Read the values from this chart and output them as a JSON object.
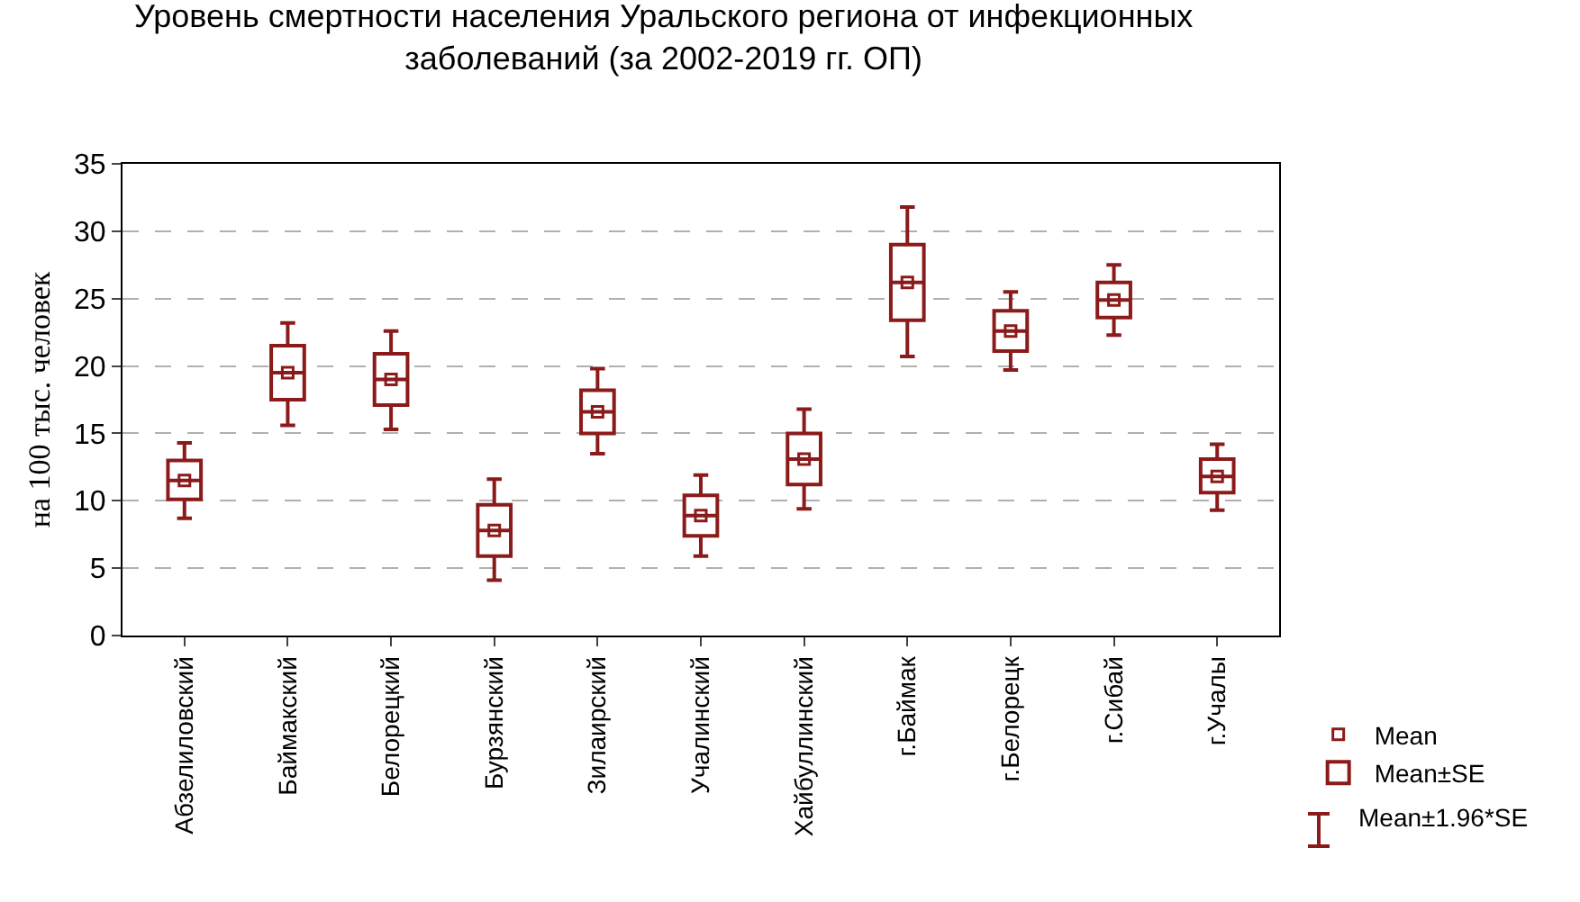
{
  "chart_data": {
    "type": "box",
    "title": "Уровень смертности населения Уральского региона от инфекционных\nзаболеваний (за 2002-2019 гг. ОП)",
    "ylabel": "на 100 тыс. человек",
    "categories": [
      "Абзелиловский",
      "Баймакский",
      "Белорецкий",
      "Бурзянский",
      "Зилаирский",
      "Учалинский",
      "Хайбуллинский",
      "г.Баймак",
      "г.Белорецк",
      "г.Сибай",
      "г.Учалы"
    ],
    "ylim": [
      0,
      35
    ],
    "yticks": [
      0,
      5,
      10,
      15,
      20,
      25,
      30,
      35
    ],
    "grid": "y",
    "legend": "bottom right",
    "series": [
      {
        "type": "scatter",
        "name": "Mean",
        "color": "#8b1a1a",
        "marker": "square",
        "values": [
          11.5,
          19.5,
          19.0,
          7.8,
          16.6,
          8.9,
          13.1,
          26.2,
          22.6,
          24.9,
          11.8
        ]
      },
      {
        "type": "box",
        "name": "Mean±SE",
        "color": "#8b1a1a",
        "boxes": [
          {
            "low": 8.7,
            "q1": 10.1,
            "median": 11.5,
            "q3": 13.0,
            "high": 14.3
          },
          {
            "low": 15.6,
            "q1": 17.5,
            "median": 19.5,
            "q3": 21.5,
            "high": 23.2
          },
          {
            "low": 15.3,
            "q1": 17.1,
            "median": 19.0,
            "q3": 20.9,
            "high": 22.6
          },
          {
            "low": 4.1,
            "q1": 5.9,
            "median": 7.8,
            "q3": 9.7,
            "high": 11.6
          },
          {
            "low": 13.5,
            "q1": 15.0,
            "median": 16.6,
            "q3": 18.2,
            "high": 19.8
          },
          {
            "low": 5.9,
            "q1": 7.4,
            "median": 8.9,
            "q3": 10.4,
            "high": 11.9
          },
          {
            "low": 9.4,
            "q1": 11.2,
            "median": 13.1,
            "q3": 15.0,
            "high": 16.8
          },
          {
            "low": 20.7,
            "q1": 23.4,
            "median": 26.2,
            "q3": 29.0,
            "high": 31.8
          },
          {
            "low": 19.7,
            "q1": 21.1,
            "median": 22.6,
            "q3": 24.1,
            "high": 25.5
          },
          {
            "low": 22.3,
            "q1": 23.6,
            "median": 24.9,
            "q3": 26.2,
            "high": 27.5
          },
          {
            "low": 9.3,
            "q1": 10.6,
            "median": 11.8,
            "q3": 13.1,
            "high": 14.2
          }
        ]
      }
    ],
    "annotations": [
      "Mean±1.96*SE"
    ]
  }
}
